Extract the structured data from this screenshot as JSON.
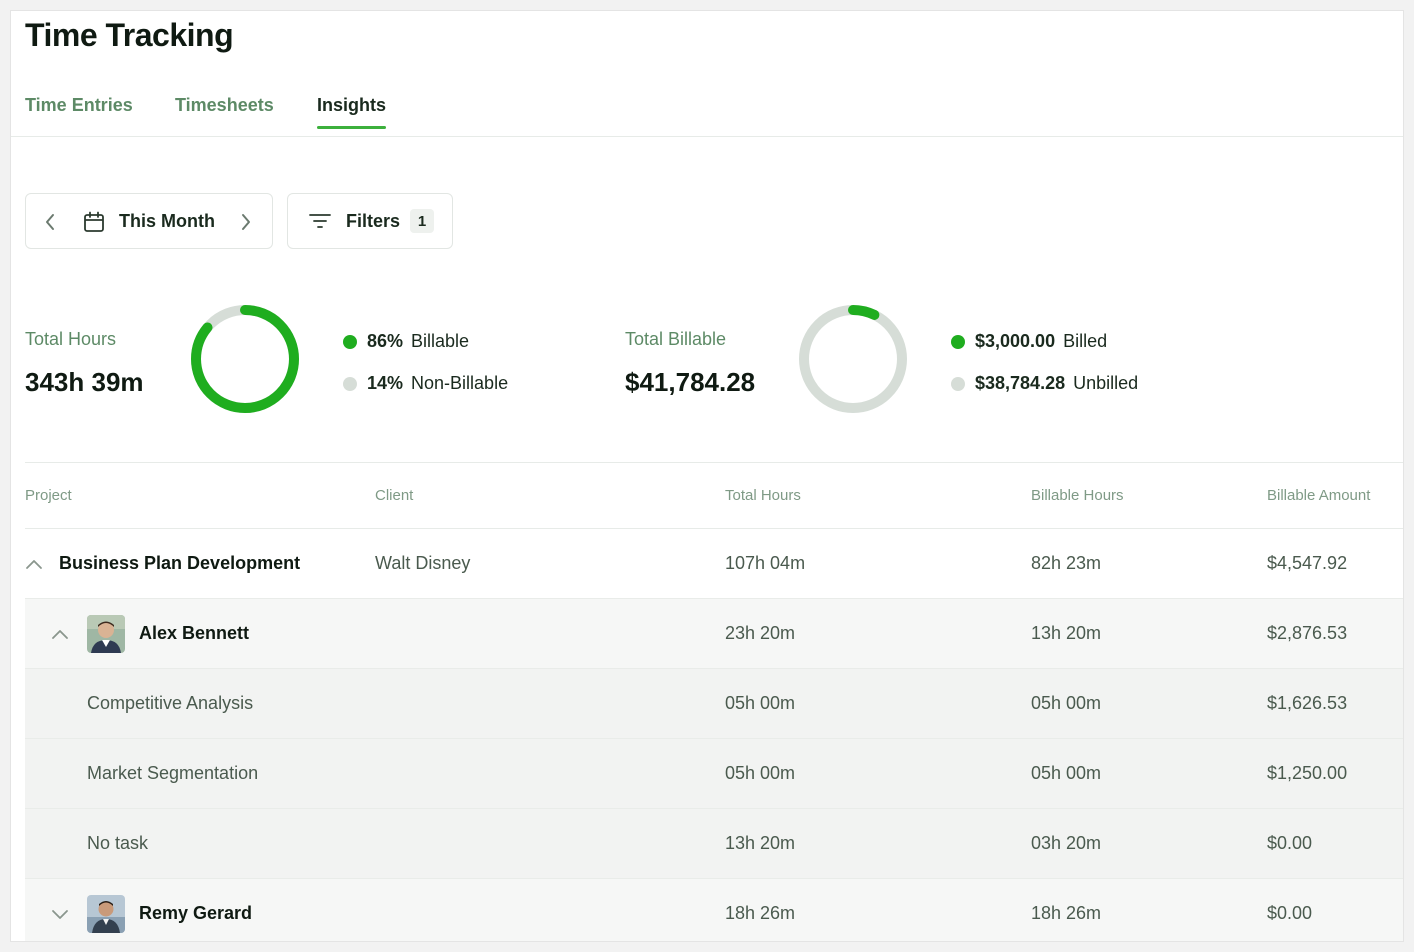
{
  "page": {
    "title": "Time Tracking"
  },
  "tabs": [
    {
      "label": "Time Entries",
      "active": false
    },
    {
      "label": "Timesheets",
      "active": false
    },
    {
      "label": "Insights",
      "active": true
    }
  ],
  "controls": {
    "period_label": "This Month",
    "filters_label": "Filters",
    "filters_count": "1"
  },
  "hours_summary": {
    "label": "Total Hours",
    "value": "343h 39m",
    "billable_fraction": 0.86,
    "legend": [
      {
        "percent": "86%",
        "label": "Billable",
        "color": "#1fad1f"
      },
      {
        "percent": "14%",
        "label": "Non-Billable",
        "color": "#d6ddd7"
      }
    ]
  },
  "billable_summary": {
    "label": "Total Billable",
    "value": "$41,784.28",
    "billed_fraction": 0.072,
    "legend": [
      {
        "amount": "$3,000.00",
        "label": "Billed",
        "color": "#1fad1f"
      },
      {
        "amount": "$38,784.28",
        "label": "Unbilled",
        "color": "#d6ddd7"
      }
    ]
  },
  "table": {
    "headers": {
      "project": "Project",
      "client": "Client",
      "total_hours": "Total Hours",
      "billable_hours": "Billable Hours",
      "billable_amount": "Billable Amount"
    },
    "rows": [
      {
        "type": "project",
        "name": "Business Plan Development",
        "client": "Walt Disney",
        "total": "107h 04m",
        "billable": "82h 23m",
        "amount": "$4,547.92",
        "expanded": true
      },
      {
        "type": "member",
        "name": "Alex Bennett",
        "total": "23h 20m",
        "billable": "13h 20m",
        "amount": "$2,876.53",
        "expanded": true
      },
      {
        "type": "task",
        "name": "Competitive Analysis",
        "total": "05h 00m",
        "billable": "05h 00m",
        "amount": "$1,626.53"
      },
      {
        "type": "task",
        "name": "Market Segmentation",
        "total": "05h 00m",
        "billable": "05h 00m",
        "amount": "$1,250.00"
      },
      {
        "type": "task",
        "name": "No task",
        "total": "13h 20m",
        "billable": "03h 20m",
        "amount": "$0.00"
      },
      {
        "type": "member",
        "name": "Remy Gerard",
        "total": "18h 26m",
        "billable": "18h 26m",
        "amount": "$0.00",
        "expanded": false
      }
    ]
  },
  "colors": {
    "accent": "#1fad1f",
    "track": "#d6ddd7",
    "tab_inactive": "#5d8a66"
  }
}
